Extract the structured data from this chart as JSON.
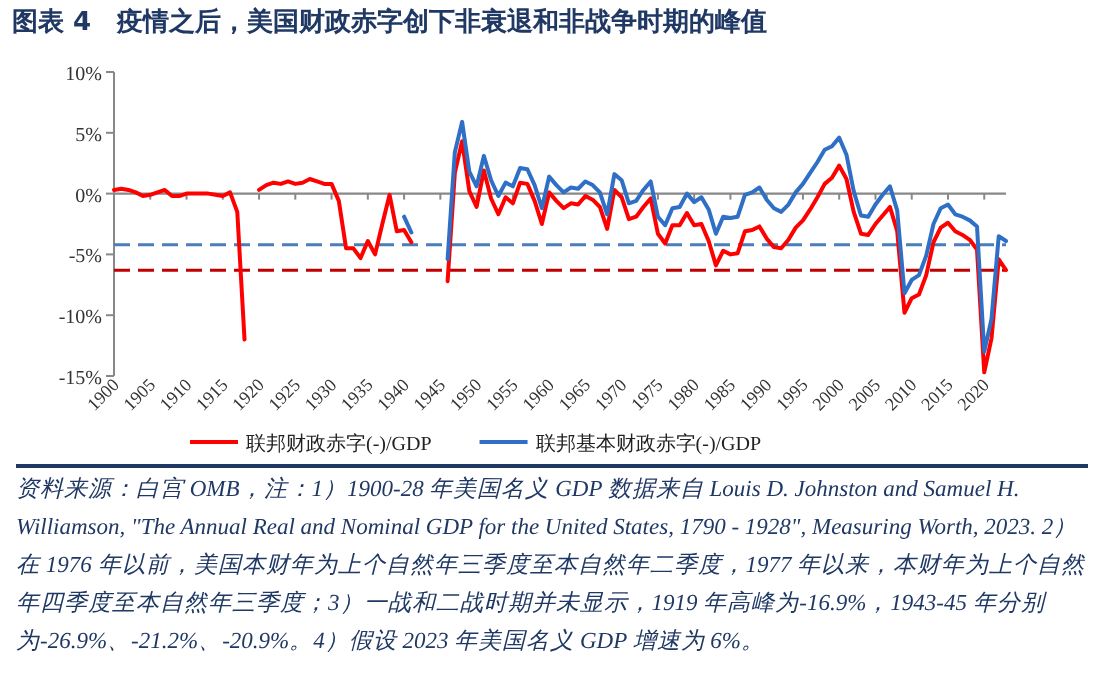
{
  "chart_data": {
    "type": "line",
    "title": "图表 4　疫情之后，美国财政赤字创下非衰退和非战争时期的峰值",
    "x": [
      1900,
      1901,
      1902,
      1903,
      1904,
      1905,
      1906,
      1907,
      1908,
      1909,
      1910,
      1911,
      1912,
      1913,
      1914,
      1915,
      1916,
      1917,
      1918,
      1919,
      1920,
      1921,
      1922,
      1923,
      1924,
      1925,
      1926,
      1927,
      1928,
      1929,
      1930,
      1931,
      1932,
      1933,
      1934,
      1935,
      1936,
      1937,
      1938,
      1939,
      1940,
      1941,
      1942,
      1943,
      1944,
      1945,
      1946,
      1947,
      1948,
      1949,
      1950,
      1951,
      1952,
      1953,
      1954,
      1955,
      1956,
      1957,
      1958,
      1959,
      1960,
      1961,
      1962,
      1963,
      1964,
      1965,
      1966,
      1967,
      1968,
      1969,
      1970,
      1971,
      1972,
      1973,
      1974,
      1975,
      1976,
      1977,
      1978,
      1979,
      1980,
      1981,
      1982,
      1983,
      1984,
      1985,
      1986,
      1987,
      1988,
      1989,
      1990,
      1991,
      1992,
      1993,
      1994,
      1995,
      1996,
      1997,
      1998,
      1999,
      2000,
      2001,
      2002,
      2003,
      2004,
      2005,
      2006,
      2007,
      2008,
      2009,
      2010,
      2011,
      2012,
      2013,
      2014,
      2015,
      2016,
      2017,
      2018,
      2019,
      2020,
      2021,
      2022,
      2023
    ],
    "xlim": [
      1900,
      2023
    ],
    "xticks": [
      1900,
      1905,
      1910,
      1915,
      1920,
      1925,
      1930,
      1935,
      1940,
      1945,
      1950,
      1955,
      1960,
      1965,
      1970,
      1975,
      1980,
      1985,
      1990,
      1995,
      2000,
      2005,
      2010,
      2015,
      2020
    ],
    "ylim": [
      -15,
      10
    ],
    "yticks": [
      {
        "value": 10,
        "label": "10%"
      },
      {
        "value": 5,
        "label": "5%"
      },
      {
        "value": 0,
        "label": "0%"
      },
      {
        "value": -5,
        "label": "-5%"
      },
      {
        "value": -10,
        "label": "-10%"
      },
      {
        "value": -15,
        "label": "-15%"
      }
    ],
    "series": [
      {
        "name": "联邦财政赤字(-)/GDP",
        "color": "#ff0000",
        "values": [
          0.3,
          0.4,
          0.3,
          0.1,
          -0.2,
          -0.1,
          0.1,
          0.3,
          -0.2,
          -0.2,
          0,
          0,
          0,
          0,
          -0.1,
          -0.2,
          0.1,
          -1.5,
          -12,
          null,
          0.3,
          0.7,
          0.9,
          0.8,
          1.0,
          0.8,
          0.9,
          1.2,
          1.0,
          0.8,
          0.8,
          -0.6,
          -4.5,
          -4.5,
          -5.3,
          -3.9,
          -5.0,
          -2.5,
          -0.1,
          -3.1,
          -3.0,
          -4.0,
          null,
          null,
          null,
          null,
          -7.2,
          1.7,
          4.3,
          0.2,
          -1.1,
          1.9,
          -0.4,
          -1.7,
          -0.3,
          -0.8,
          0.9,
          0.8,
          -0.6,
          -2.5,
          0.1,
          -0.6,
          -1.2,
          -0.8,
          -0.9,
          -0.2,
          -0.5,
          -1.1,
          -2.9,
          0.3,
          -0.3,
          -2.1,
          -1.9,
          -1.1,
          -0.4,
          -3.3,
          -4.1,
          -2.6,
          -2.6,
          -1.6,
          -2.6,
          -2.5,
          -3.9,
          -5.9,
          -4.7,
          -5.0,
          -4.9,
          -3.1,
          -3.0,
          -2.7,
          -3.7,
          -4.4,
          -4.5,
          -3.8,
          -2.8,
          -2.2,
          -1.3,
          -0.3,
          0.8,
          1.3,
          2.3,
          1.2,
          -1.5,
          -3.3,
          -3.4,
          -2.5,
          -1.8,
          -1.1,
          -3.1,
          -9.8,
          -8.6,
          -8.3,
          -6.7,
          -4.0,
          -2.8,
          -2.4,
          -3.1,
          -3.4,
          -3.8,
          -4.6,
          -14.7,
          -11.9,
          -5.4,
          -6.3
        ]
      },
      {
        "name": "联邦基本财政赤字(-)/GDP",
        "color": "#2f6fc6",
        "values": [
          null,
          null,
          null,
          null,
          null,
          null,
          null,
          null,
          null,
          null,
          null,
          null,
          null,
          null,
          null,
          null,
          null,
          null,
          null,
          null,
          null,
          null,
          null,
          null,
          null,
          null,
          null,
          null,
          null,
          null,
          null,
          null,
          null,
          null,
          null,
          null,
          null,
          null,
          null,
          null,
          -1.9,
          -3.2,
          null,
          null,
          null,
          null,
          -5.4,
          3.4,
          5.9,
          1.8,
          0.6,
          3.1,
          1.1,
          -0.2,
          0.9,
          0.6,
          2.1,
          2.0,
          0.7,
          -1.2,
          1.4,
          0.7,
          0.1,
          0.5,
          0.4,
          1.0,
          0.7,
          0.1,
          -1.7,
          1.6,
          1.1,
          -0.8,
          -0.6,
          0.3,
          1.0,
          -1.9,
          -2.6,
          -1.2,
          -1.1,
          0.0,
          -0.7,
          -0.3,
          -1.3,
          -3.3,
          -1.9,
          -2.0,
          -1.9,
          -0.1,
          0.1,
          0.5,
          -0.5,
          -1.2,
          -1.5,
          -0.9,
          0.1,
          0.8,
          1.7,
          2.6,
          3.6,
          3.9,
          4.6,
          3.2,
          0.2,
          -1.8,
          -1.9,
          -0.9,
          -0.1,
          0.6,
          -1.4,
          -8.2,
          -7.1,
          -6.7,
          -5.1,
          -2.5,
          -1.2,
          -0.9,
          -1.7,
          -1.9,
          -2.2,
          -2.7,
          -13.0,
          -10.3,
          -3.5,
          -3.9
        ]
      }
    ],
    "ref_lines": [
      {
        "axis": "y",
        "value": -4.2,
        "color": "#4a7ebb",
        "line_style": "dashed"
      },
      {
        "axis": "y",
        "value": -6.3,
        "color": "#c00000",
        "line_style": "dashed"
      }
    ],
    "legend": "bottom",
    "annotations": [
      "资料来源：白宫 OMB，注：1）1900-28 年美国名义 GDP 数据来自 Louis D. Johnston and Samuel H. Williamson, \"The Annual Real and Nominal GDP for the United States, 1790 - 1928\", Measuring Worth, 2023. 2）在 1976 年以前，美国本财年为上个自然年三季度至本自然年二季度，1977 年以来，本财年为上个自然年四季度至本自然年三季度；3）一战和二战时期并未显示，1919 年高峰为-16.9%，1943-45 年分别为-26.9%、-21.2%、-20.9%。4）假设 2023 年美国名义 GDP 增速为 6%。"
    ]
  }
}
